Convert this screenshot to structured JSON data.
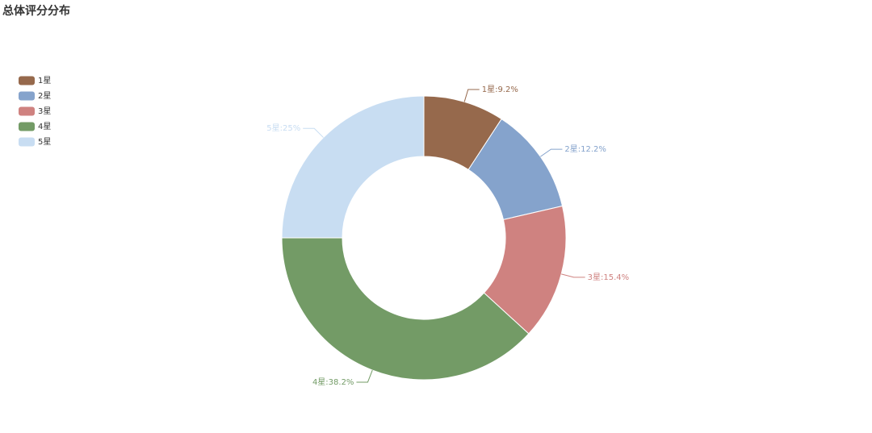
{
  "chart_data": {
    "type": "pie",
    "title": "总体评分分布",
    "categories": [
      "1星",
      "2星",
      "3星",
      "4星",
      "5星"
    ],
    "values": [
      9.2,
      12.2,
      15.4,
      38.2,
      25
    ],
    "value_labels": [
      "1星:9.2%",
      "2星:12.2%",
      "3星:15.4%",
      "4星:38.2%",
      "5星:25%"
    ],
    "colors": [
      "#96694c",
      "#85a3cc",
      "#cf8280",
      "#739b66",
      "#c8ddf2"
    ],
    "legend": "top-left"
  }
}
